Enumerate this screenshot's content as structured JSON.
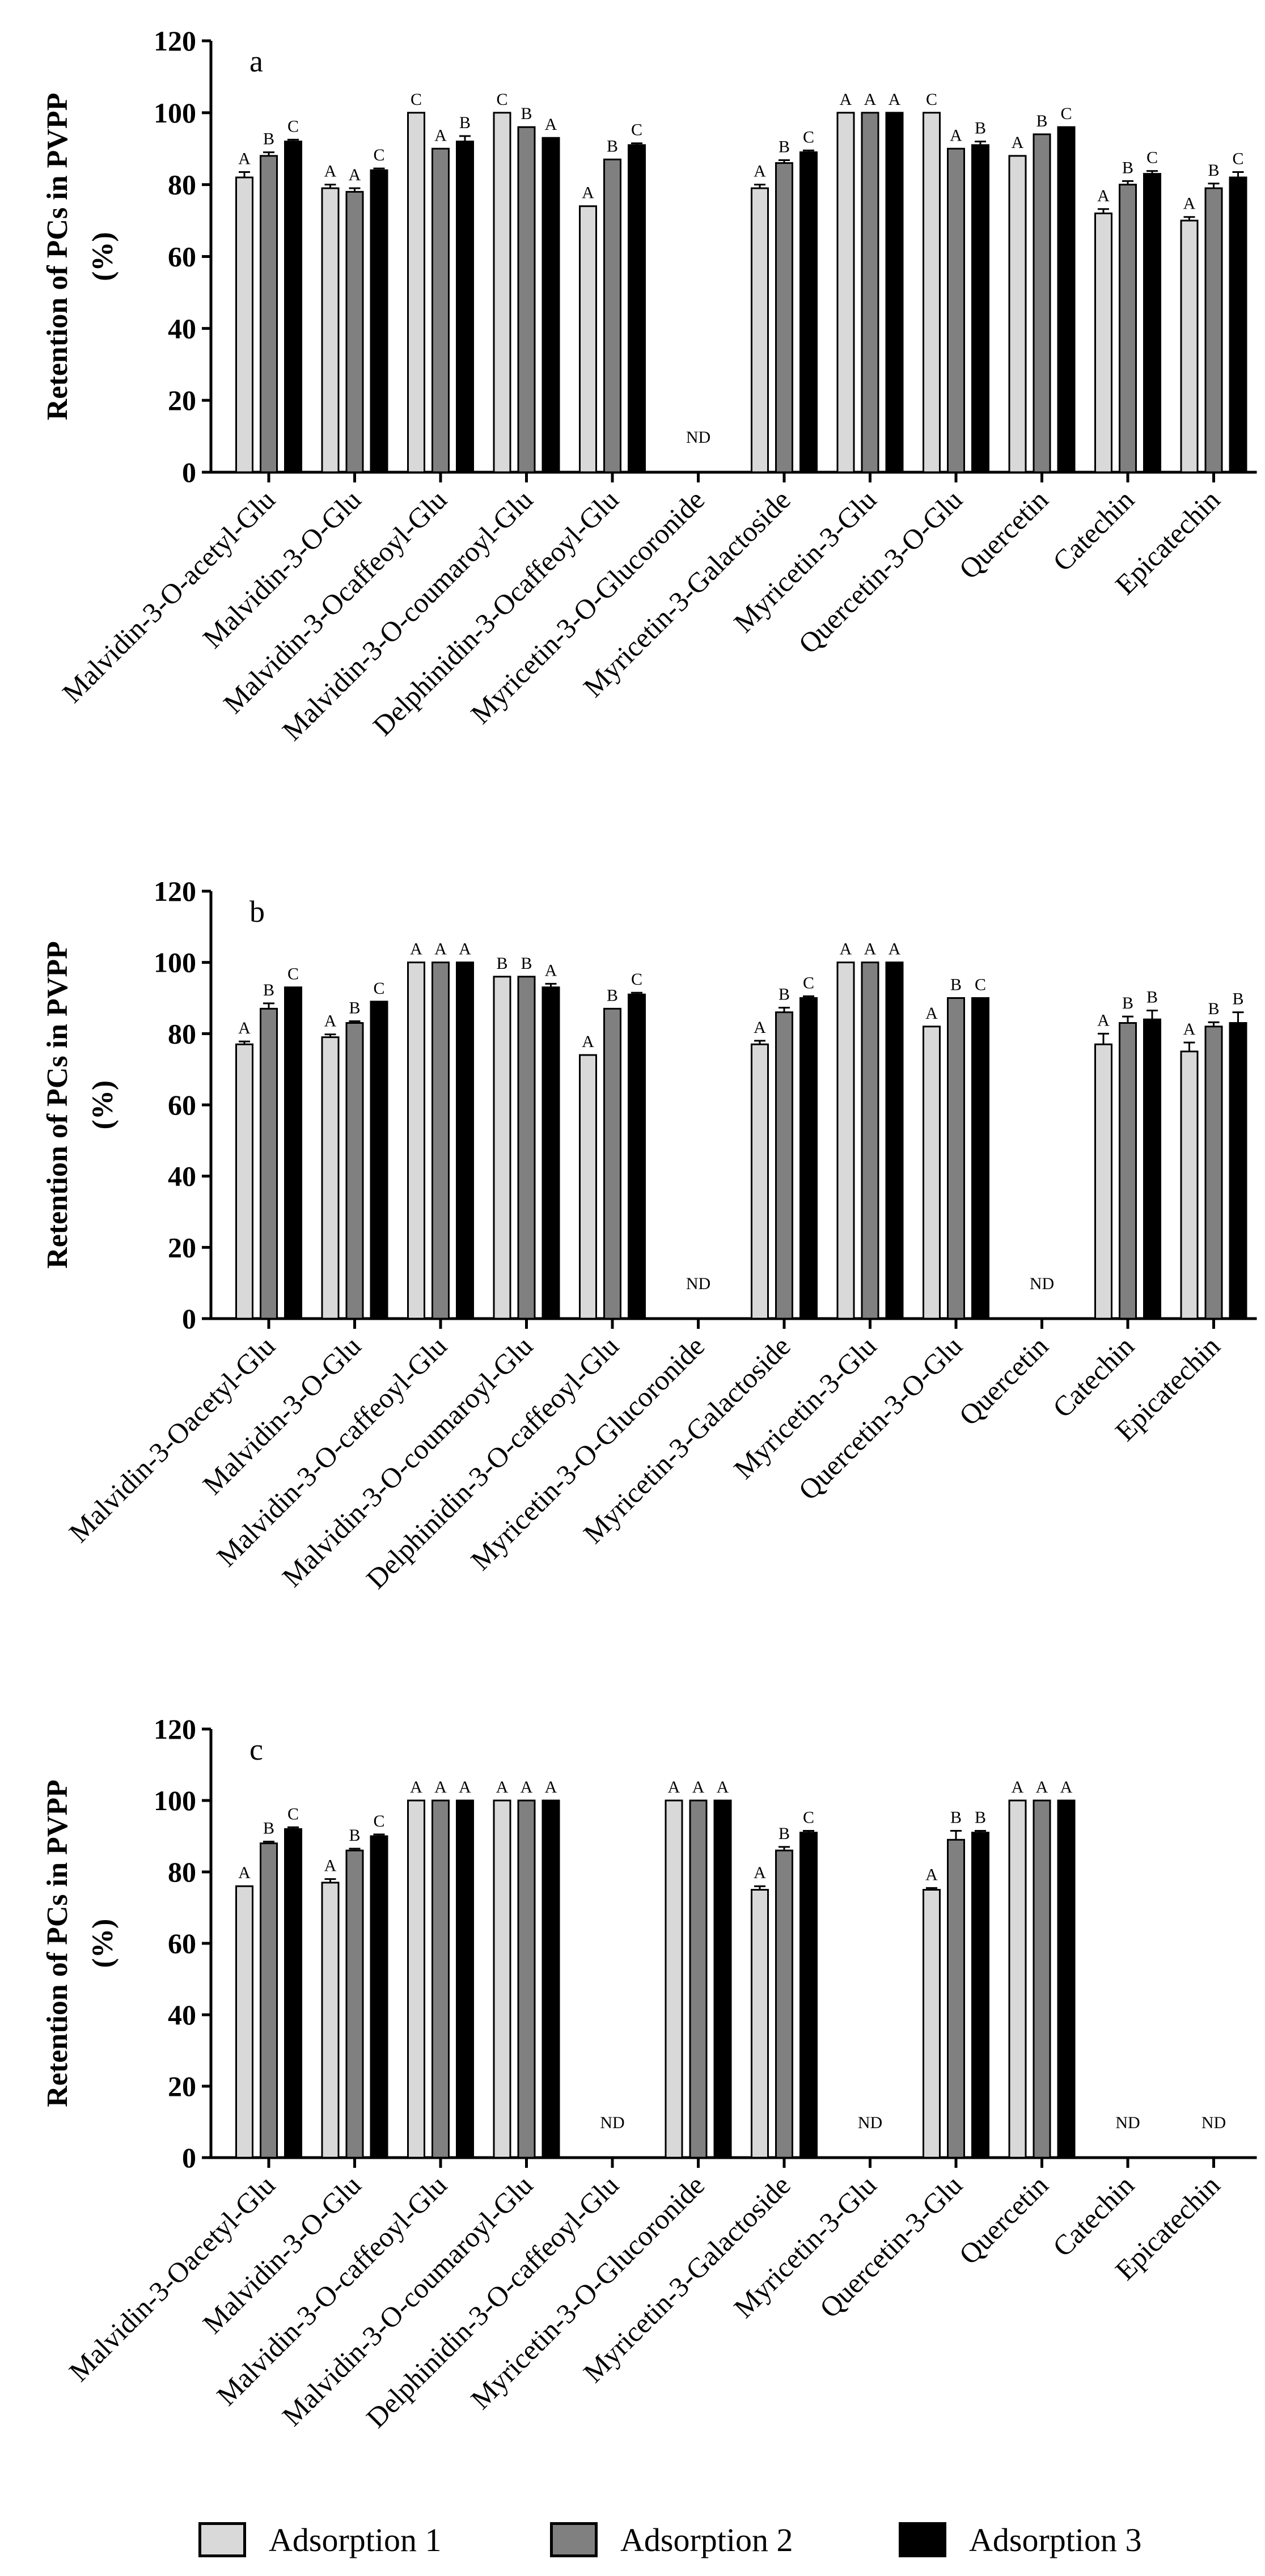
{
  "figure": {
    "ylabel_line1": "Retention of PCs in PVPP",
    "ylabel_line2": "(%)",
    "legend": [
      {
        "name": "Adsorption 1",
        "color": "#d9d9d9"
      },
      {
        "name": "Adsorption 2",
        "color": "#808080"
      },
      {
        "name": "Adsorption 3",
        "color": "#000000"
      }
    ]
  },
  "chart_data": [
    {
      "type": "bar",
      "panel": "a",
      "ylabel": "Retention of PCs in PVPP (%)",
      "ylim": [
        0,
        120
      ],
      "yticks": [
        0,
        20,
        40,
        60,
        80,
        100,
        120
      ],
      "categories": [
        "Malvidin-3-O-acetyl-Glu",
        "Malvidin-3-O-Glu",
        "Malvidin-3-Ocaffeoyl-Glu",
        "Malvidin-3-O-coumaroyl-Glu",
        "Delphinidin-3-Ocaffeoyl-Glu",
        "Myricetin-3-O-Glucoronide",
        "Myricetin-3-Galactoside",
        "Myricetin-3-Glu",
        "Quercetin-3-O-Glu",
        "Quercetin",
        "Catechin",
        "Epicatechin"
      ],
      "nd": [
        false,
        false,
        false,
        false,
        false,
        true,
        false,
        false,
        false,
        false,
        false,
        false
      ],
      "series": [
        {
          "name": "Adsorption 1",
          "values": [
            82,
            79,
            100,
            100,
            74,
            null,
            79,
            100,
            100,
            88,
            72,
            70
          ],
          "errors": [
            1.5,
            1,
            0,
            0,
            0,
            null,
            1,
            0,
            0,
            0,
            1.2,
            1
          ],
          "letters": [
            "A",
            "A",
            "C",
            "C",
            "A",
            "",
            "A",
            "A",
            "C",
            "A",
            "A",
            "A"
          ]
        },
        {
          "name": "Adsorption 2",
          "values": [
            88,
            78,
            90,
            96,
            87,
            null,
            86,
            100,
            90,
            94,
            80,
            79
          ],
          "errors": [
            1,
            1,
            0,
            0,
            0,
            null,
            0.8,
            0,
            0,
            0,
            1,
            1.3
          ],
          "letters": [
            "B",
            "A",
            "A",
            "B",
            "B",
            "",
            "B",
            "A",
            "A",
            "B",
            "B",
            "B"
          ]
        },
        {
          "name": "Adsorption 3",
          "values": [
            92,
            84,
            92,
            93,
            91,
            null,
            89,
            100,
            91,
            96,
            83,
            82
          ],
          "errors": [
            0.5,
            0.5,
            1.5,
            0,
            0.5,
            null,
            0.5,
            0,
            1,
            0,
            0.8,
            1.5
          ],
          "letters": [
            "C",
            "C",
            "B",
            "A",
            "C",
            "",
            "C",
            "A",
            "B",
            "C",
            "C",
            "C"
          ]
        }
      ]
    },
    {
      "type": "bar",
      "panel": "b",
      "ylabel": "Retention of PCs in PVPP (%)",
      "ylim": [
        0,
        120
      ],
      "yticks": [
        0,
        20,
        40,
        60,
        80,
        100,
        120
      ],
      "categories": [
        "Malvidin-3-Oacetyl-Glu",
        "Malvidin-3-O-Glu",
        "Malvidin-3-O-caffeoyl-Glu",
        "Malvidin-3-O-coumaroyl-Glu",
        "Delphinidin-3-O-caffeoyl-Glu",
        "Myricetin-3-O-Glucoronide",
        "Myricetin-3-Galactoside",
        "Myricetin-3-Glu",
        "Quercetin-3-O-Glu",
        "Quercetin",
        "Catechin",
        "Epicatechin"
      ],
      "nd": [
        false,
        false,
        false,
        false,
        false,
        true,
        false,
        false,
        false,
        true,
        false,
        false
      ],
      "series": [
        {
          "name": "Adsorption 1",
          "values": [
            77,
            79,
            100,
            96,
            74,
            null,
            77,
            100,
            82,
            null,
            77,
            75
          ],
          "errors": [
            0.8,
            0.8,
            0,
            0,
            0,
            null,
            1,
            0,
            0,
            null,
            3,
            2.5
          ],
          "letters": [
            "A",
            "A",
            "A",
            "B",
            "A",
            "",
            "A",
            "A",
            "A",
            "",
            "A",
            "A"
          ]
        },
        {
          "name": "Adsorption 2",
          "values": [
            87,
            83,
            100,
            96,
            87,
            null,
            86,
            100,
            90,
            null,
            83,
            82
          ],
          "errors": [
            1.5,
            0.5,
            0,
            0,
            0,
            null,
            1.3,
            0,
            0,
            null,
            1.8,
            1.2
          ],
          "letters": [
            "B",
            "B",
            "A",
            "B",
            "B",
            "",
            "B",
            "A",
            "B",
            "",
            "B",
            "B"
          ]
        },
        {
          "name": "Adsorption 3",
          "values": [
            93,
            89,
            100,
            93,
            91,
            null,
            90,
            100,
            90,
            null,
            84,
            83
          ],
          "errors": [
            0,
            0,
            0,
            1,
            0.5,
            null,
            0.5,
            0,
            0,
            null,
            2.5,
            3
          ],
          "letters": [
            "C",
            "C",
            "A",
            "A",
            "C",
            "",
            "C",
            "A",
            "C",
            "",
            "B",
            "B"
          ]
        }
      ]
    },
    {
      "type": "bar",
      "panel": "c",
      "ylabel": "Retention of PCs in PVPP (%)",
      "ylim": [
        0,
        120
      ],
      "yticks": [
        0,
        20,
        40,
        60,
        80,
        100,
        120
      ],
      "categories": [
        "Malvidin-3-Oacetyl-Glu",
        "Malvidin-3-O-Glu",
        "Malvidin-3-O-caffeoyl-Glu",
        "Malvidin-3-O-coumaroyl-Glu",
        "Delphinidin-3-O-caffeoyl-Glu",
        "Myricetin-3-O-Glucoronide",
        "Myricetin-3-Galactoside",
        "Myricetin-3-Glu",
        "Quercetin-3-Glu",
        "Quercetin",
        "Catechin",
        "Epicatechin"
      ],
      "nd": [
        false,
        false,
        false,
        false,
        true,
        false,
        false,
        true,
        false,
        false,
        true,
        true
      ],
      "series": [
        {
          "name": "Adsorption 1",
          "values": [
            76,
            77,
            100,
            100,
            null,
            100,
            75,
            null,
            75,
            100,
            null,
            null
          ],
          "errors": [
            0,
            1,
            0,
            0,
            null,
            0,
            1,
            null,
            0.5,
            0,
            null,
            null
          ],
          "letters": [
            "A",
            "A",
            "A",
            "A",
            "",
            "A",
            "A",
            "",
            "A",
            "A",
            "",
            ""
          ]
        },
        {
          "name": "Adsorption 2",
          "values": [
            88,
            86,
            100,
            100,
            null,
            100,
            86,
            null,
            89,
            100,
            null,
            null
          ],
          "errors": [
            0.5,
            0.5,
            0,
            0,
            null,
            0,
            1,
            null,
            2.5,
            0,
            null,
            null
          ],
          "letters": [
            "B",
            "B",
            "A",
            "A",
            "",
            "A",
            "B",
            "",
            "B",
            "A",
            "",
            ""
          ]
        },
        {
          "name": "Adsorption 3",
          "values": [
            92,
            90,
            100,
            100,
            null,
            100,
            91,
            null,
            91,
            100,
            null,
            null
          ],
          "errors": [
            0.5,
            0.5,
            0,
            0,
            null,
            0,
            0.5,
            null,
            0.5,
            0,
            null,
            null
          ],
          "letters": [
            "C",
            "C",
            "A",
            "A",
            "",
            "A",
            "C",
            "",
            "B",
            "A",
            "",
            ""
          ]
        }
      ]
    }
  ]
}
